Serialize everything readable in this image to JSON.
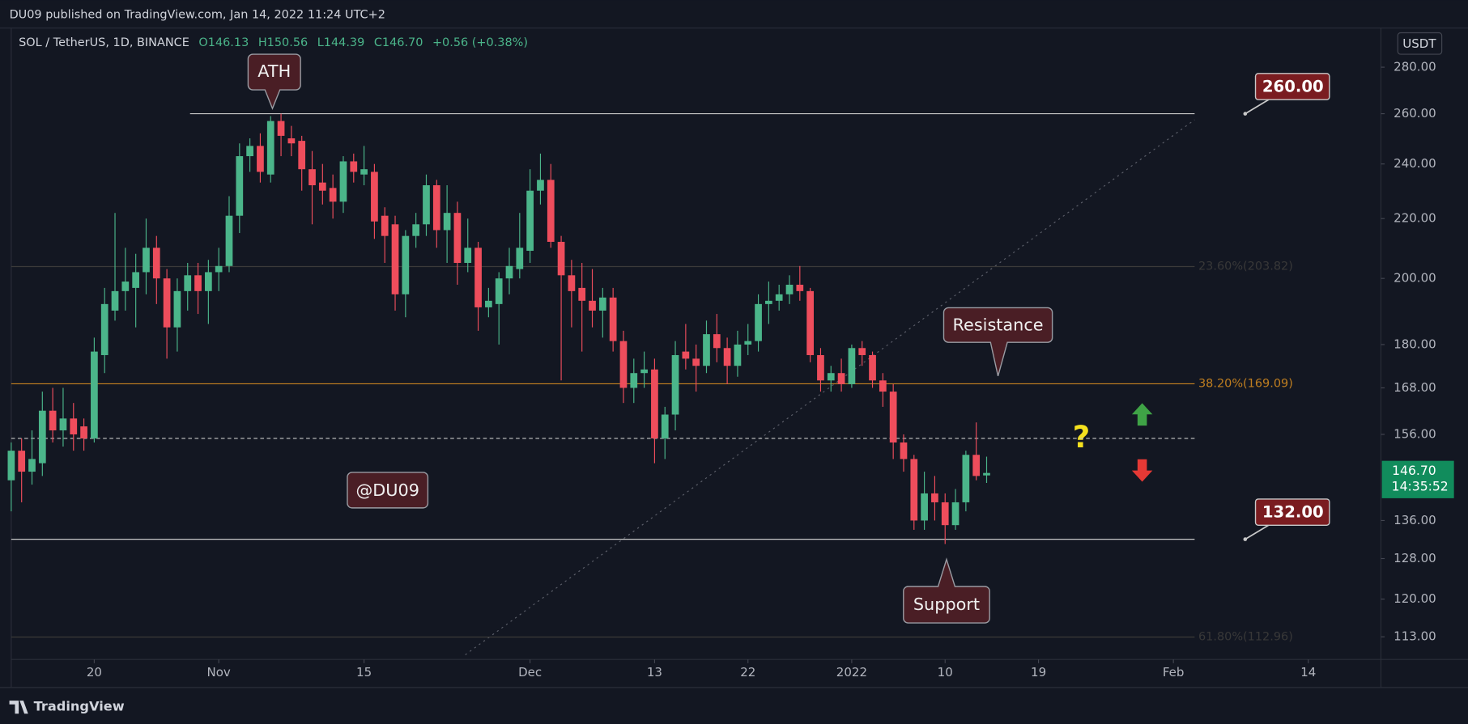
{
  "header": {
    "text": "DU09 published on TradingView.com, Jan 14, 2022 11:24 UTC+2"
  },
  "footer": {
    "brand": "TradingView"
  },
  "chart_data": {
    "type": "candlestick",
    "title": "SOL / TetherUS, 1D, BINANCE",
    "legend_values": [
      "O146.13",
      "H150.56",
      "L144.39",
      "C146.70",
      "+0.56 (+0.38%)"
    ],
    "currency": "USDT",
    "log_scale": true,
    "up_color": "#4bb58a",
    "down_color": "#ee4d5c",
    "x": [
      "2021-10-12",
      "2021-10-13",
      "2021-10-14",
      "2021-10-15",
      "2021-10-16",
      "2021-10-17",
      "2021-10-18",
      "2021-10-19",
      "2021-10-20",
      "2021-10-21",
      "2021-10-22",
      "2021-10-23",
      "2021-10-24",
      "2021-10-25",
      "2021-10-26",
      "2021-10-27",
      "2021-10-28",
      "2021-10-29",
      "2021-10-30",
      "2021-10-31",
      "2021-11-01",
      "2021-11-02",
      "2021-11-03",
      "2021-11-04",
      "2021-11-05",
      "2021-11-06",
      "2021-11-07",
      "2021-11-08",
      "2021-11-09",
      "2021-11-10",
      "2021-11-11",
      "2021-11-12",
      "2021-11-13",
      "2021-11-14",
      "2021-11-15",
      "2021-11-16",
      "2021-11-17",
      "2021-11-18",
      "2021-11-19",
      "2021-11-20",
      "2021-11-21",
      "2021-11-22",
      "2021-11-23",
      "2021-11-24",
      "2021-11-25",
      "2021-11-26",
      "2021-11-27",
      "2021-11-28",
      "2021-11-29",
      "2021-11-30",
      "2021-12-01",
      "2021-12-02",
      "2021-12-03",
      "2021-12-04",
      "2021-12-05",
      "2021-12-06",
      "2021-12-07",
      "2021-12-08",
      "2021-12-09",
      "2021-12-10",
      "2021-12-11",
      "2021-12-12",
      "2021-12-13",
      "2021-12-14",
      "2021-12-15",
      "2021-12-16",
      "2021-12-17",
      "2021-12-18",
      "2021-12-19",
      "2021-12-20",
      "2021-12-21",
      "2021-12-22",
      "2021-12-23",
      "2021-12-24",
      "2021-12-25",
      "2021-12-26",
      "2021-12-27",
      "2021-12-28",
      "2021-12-29",
      "2021-12-30",
      "2021-12-31",
      "2022-01-01",
      "2022-01-02",
      "2022-01-03",
      "2022-01-04",
      "2022-01-05",
      "2022-01-06",
      "2022-01-07",
      "2022-01-08",
      "2022-01-09",
      "2022-01-10",
      "2022-01-11",
      "2022-01-12",
      "2022-01-13",
      "2022-01-14"
    ],
    "open": [
      145,
      152,
      147,
      149,
      162,
      157,
      160,
      158,
      155,
      177,
      190,
      196,
      197,
      202,
      210,
      200,
      185,
      196,
      201,
      196,
      202,
      204,
      221,
      243,
      247,
      236,
      257,
      250,
      249,
      238,
      233,
      231,
      226,
      241,
      236,
      237,
      221,
      218,
      195,
      214,
      218,
      232,
      216,
      222,
      205,
      210,
      191,
      192,
      200,
      203,
      209,
      230,
      234,
      212,
      201,
      197,
      193,
      190,
      194,
      181,
      168,
      172,
      173,
      155,
      161,
      178,
      176,
      174,
      183,
      179,
      174,
      180,
      181,
      192,
      193,
      195,
      198,
      196,
      177,
      170,
      172,
      169,
      179,
      177,
      170,
      167,
      154,
      150,
      136,
      142,
      140,
      135,
      140,
      151,
      146.13
    ],
    "high": [
      154,
      155,
      157,
      167,
      168,
      168,
      164,
      160,
      182,
      197,
      222,
      210,
      208,
      220,
      214,
      203,
      200,
      205,
      205,
      206,
      210,
      228,
      248,
      250,
      252,
      259,
      260,
      255,
      251,
      245,
      240,
      236,
      243,
      244,
      247,
      240,
      224,
      221,
      216,
      222,
      236,
      234,
      232,
      226,
      220,
      212,
      197,
      202,
      210,
      222,
      238,
      244,
      240,
      214,
      206,
      205,
      203,
      197,
      197,
      184,
      176,
      178,
      176,
      163,
      181,
      186,
      180,
      187,
      189,
      182,
      184,
      186,
      195,
      199,
      198,
      201,
      204,
      197,
      179,
      174,
      176,
      180,
      181,
      178,
      172,
      169,
      156,
      151,
      147,
      146,
      142,
      143,
      152,
      159,
      150.56
    ],
    "low": [
      138,
      140,
      144,
      146,
      154,
      153,
      152,
      152,
      154,
      172,
      187,
      190,
      185,
      195,
      192,
      176,
      178,
      190,
      189,
      186,
      196,
      202,
      215,
      237,
      233,
      233,
      243,
      243,
      230,
      218,
      225,
      220,
      222,
      233,
      232,
      213,
      205,
      190,
      188,
      210,
      214,
      210,
      205,
      198,
      202,
      184,
      188,
      180,
      195,
      200,
      205,
      225,
      210,
      170,
      185,
      178,
      185,
      182,
      178,
      164,
      164,
      168,
      149,
      150,
      157,
      173,
      167,
      172,
      175,
      169,
      171,
      177,
      178,
      186,
      190,
      192,
      193,
      175,
      167,
      167,
      167,
      168,
      174,
      168,
      163,
      150,
      147,
      134,
      134,
      136,
      131,
      134,
      138,
      145,
      144.39
    ],
    "close": [
      152,
      147,
      150,
      162,
      157,
      160,
      156,
      155,
      178,
      192,
      196,
      199,
      202,
      210,
      200,
      185,
      196,
      201,
      196,
      202,
      204,
      221,
      243,
      247,
      237,
      257,
      251,
      248,
      238,
      232,
      230,
      226,
      241,
      237,
      238,
      219,
      214,
      195,
      214,
      218,
      232,
      216,
      222,
      205,
      210,
      191,
      193,
      200,
      204,
      210,
      230,
      234,
      212,
      201,
      196,
      193,
      190,
      194,
      181,
      168,
      172,
      173,
      155,
      161,
      177,
      176,
      174,
      183,
      179,
      174,
      180,
      181,
      192,
      193,
      195,
      198,
      196,
      177,
      170,
      172,
      169,
      179,
      177,
      170,
      167,
      154,
      150,
      136,
      142,
      140,
      135,
      140,
      151,
      146,
      146.7
    ],
    "xlim": [
      "2021-10-12",
      "2022-02-21"
    ],
    "xticks": [
      {
        "value": "2021-10-20",
        "label": "20"
      },
      {
        "value": "2021-11-01",
        "label": "Nov"
      },
      {
        "value": "2021-11-15",
        "label": "15"
      },
      {
        "value": "2021-12-01",
        "label": "Dec"
      },
      {
        "value": "2021-12-13",
        "label": "13"
      },
      {
        "value": "2021-12-22",
        "label": "22"
      },
      {
        "value": "2022-01-01",
        "label": "2022"
      },
      {
        "value": "2022-01-10",
        "label": "10"
      },
      {
        "value": "2022-01-19",
        "label": "19"
      },
      {
        "value": "2022-02-01",
        "label": "Feb"
      },
      {
        "value": "2022-02-14",
        "label": "14"
      }
    ],
    "ylim": [
      109,
      298
    ],
    "yticks": [
      {
        "value": 280,
        "label": "280.00"
      },
      {
        "value": 260,
        "label": "260.00"
      },
      {
        "value": 240,
        "label": "240.00"
      },
      {
        "value": 220,
        "label": "220.00"
      },
      {
        "value": 200,
        "label": "200.00"
      },
      {
        "value": 180,
        "label": "180.00"
      },
      {
        "value": 168,
        "label": "168.00"
      },
      {
        "value": 156,
        "label": "156.00"
      },
      {
        "value": 136,
        "label": "136.00"
      },
      {
        "value": 128,
        "label": "128.00"
      },
      {
        "value": 120,
        "label": "120.00"
      },
      {
        "value": 113,
        "label": "113.00"
      }
    ],
    "horizontal_lines": [
      {
        "value": 260,
        "color": "#c8c8c8"
      },
      {
        "value": 132,
        "color": "#c8c8c8"
      },
      {
        "value": 155,
        "color": "#c8c8c8",
        "dashed": true
      }
    ],
    "fib_levels": [
      {
        "value": 203.82,
        "label": "23.60%(203.82)",
        "color": "#3b3a3a"
      },
      {
        "value": 169.09,
        "label": "38.20%(169.09)",
        "color": "#c98420"
      },
      {
        "value": 112.96,
        "label": "61.80%(112.96)",
        "color": "#3b3a3a"
      }
    ],
    "price_labels": [
      {
        "value": 260,
        "label": "260.00"
      },
      {
        "value": 132,
        "label": "132.00"
      }
    ],
    "last_price": {
      "value": 146.7,
      "label": "146.70",
      "countdown": "14:35:52"
    },
    "annotations": [
      "ATH",
      "Resistance",
      "Support",
      "@DU09",
      "?"
    ]
  }
}
